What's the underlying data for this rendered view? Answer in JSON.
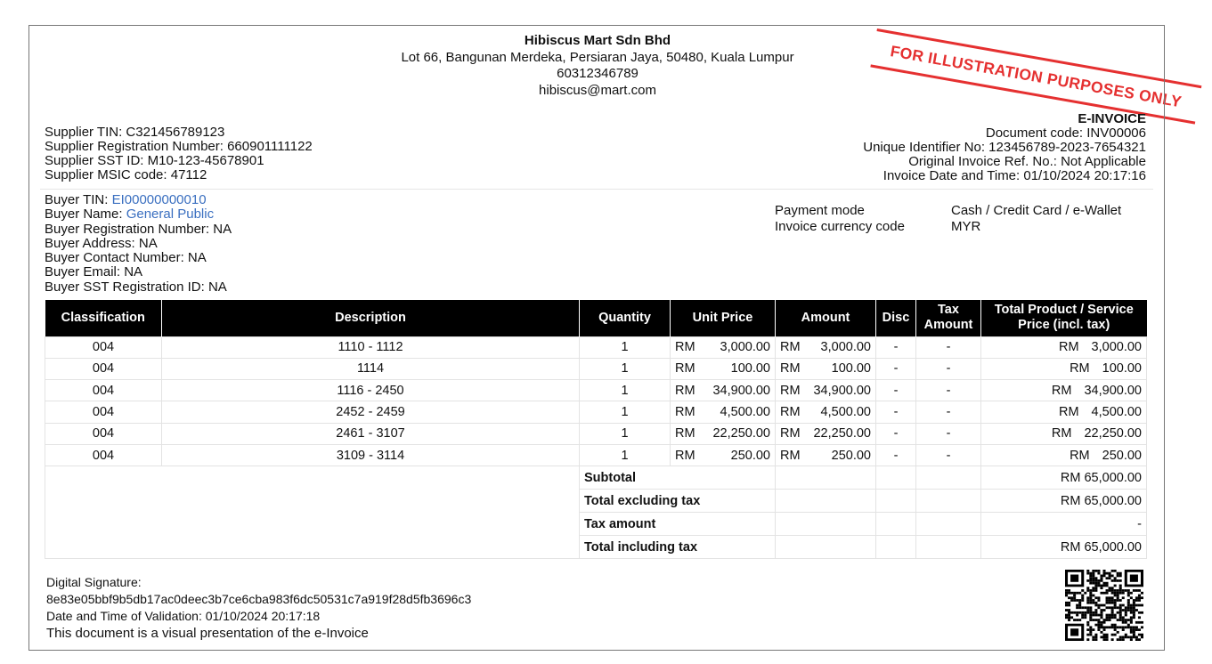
{
  "stamp": "FOR ILLUSTRATION PURPOSES ONLY",
  "supplier": {
    "name": "Hibiscus Mart Sdn Bhd",
    "address": "Lot 66, Bangunan Merdeka, Persiaran Jaya, 50480, Kuala Lumpur",
    "phone": "60312346789",
    "email": "hibiscus@mart.com",
    "tin": "Supplier TIN: C321456789123",
    "reg": "Supplier Registration Number: 660901111122",
    "sst": "Supplier SST ID: M10-123-45678901",
    "msic": "Supplier MSIC code: 47112"
  },
  "invoice": {
    "title": "E-INVOICE",
    "doc_code": "Document code: INV00006",
    "uid": "Unique Identifier No: 123456789-2023-7654321",
    "orig_ref": "Original Invoice Ref. No.: Not Applicable",
    "date": "Invoice Date and Time: 01/10/2024 20:17:16"
  },
  "buyer": {
    "tin_label": "Buyer TIN: ",
    "tin": "EI00000000010",
    "name_label": "Buyer Name: ",
    "name": "General Public",
    "reg": "Buyer Registration Number: NA",
    "address": "Buyer Address: NA",
    "contact": "Buyer Contact Number: NA",
    "email": "Buyer Email: NA",
    "sst": "Buyer SST Registration ID: NA"
  },
  "payment": {
    "mode_label": "Payment mode",
    "mode": "Cash / Credit Card / e-Wallet",
    "currency_label": "Invoice currency code",
    "currency": "MYR"
  },
  "table": {
    "headers": [
      "Classification",
      "Description",
      "Quantity",
      "Unit Price",
      "Amount",
      "Disc",
      "Tax Amount",
      "Total Product / Service Price (incl. tax)"
    ],
    "rows": [
      [
        "004",
        "1110 - 1112",
        "1",
        "3,000.00",
        "3,000.00",
        "-",
        "-",
        "3,000.00"
      ],
      [
        "004",
        "1114",
        "1",
        "100.00",
        "100.00",
        "-",
        "-",
        "100.00"
      ],
      [
        "004",
        "1116 - 2450",
        "1",
        "34,900.00",
        "34,900.00",
        "-",
        "-",
        "34,900.00"
      ],
      [
        "004",
        "2452 - 2459",
        "1",
        "4,500.00",
        "4,500.00",
        "-",
        "-",
        "4,500.00"
      ],
      [
        "004",
        "2461 - 3107",
        "1",
        "22,250.00",
        "22,250.00",
        "-",
        "-",
        "22,250.00"
      ],
      [
        "004",
        "3109 - 3114",
        "1",
        "250.00",
        "250.00",
        "-",
        "-",
        "250.00"
      ]
    ],
    "currency": "RM",
    "summary": [
      {
        "label": "Subtotal",
        "value": "RM 65,000.00"
      },
      {
        "label": "Total excluding tax",
        "value": "RM 65,000.00"
      },
      {
        "label": "Tax amount",
        "value": "-"
      },
      {
        "label": "Total including tax",
        "value": "RM 65,000.00"
      }
    ]
  },
  "footer": {
    "sig_label": "Digital Signature:",
    "sig": "8e83e05bbf9b5db17ac0deec3b7ce6cba983f6dc50531c7a919f28d5fb3696c3",
    "validation": "Date and Time of Validation: 01/10/2024  20:17:18",
    "note": "This document is a visual presentation of the e-Invoice"
  }
}
